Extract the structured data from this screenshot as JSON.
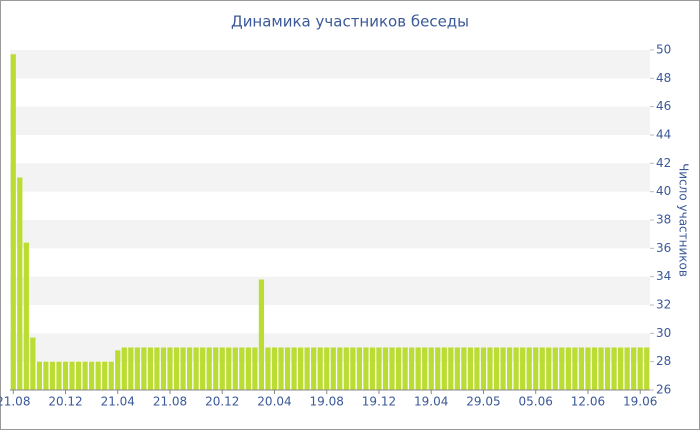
{
  "chart_data": {
    "type": "bar",
    "title": "Динамика участников беседы",
    "y_label": "Число участников",
    "categories": [
      "21.08",
      null,
      null,
      null,
      null,
      null,
      null,
      null,
      "20.12",
      null,
      null,
      null,
      null,
      null,
      null,
      null,
      "21.04",
      null,
      null,
      null,
      null,
      null,
      null,
      null,
      "21.08",
      null,
      null,
      null,
      null,
      null,
      null,
      null,
      "20.12",
      null,
      null,
      null,
      null,
      null,
      null,
      null,
      "20.04",
      null,
      null,
      null,
      null,
      null,
      null,
      null,
      "19.08",
      null,
      null,
      null,
      null,
      null,
      null,
      null,
      "19.12",
      null,
      null,
      null,
      null,
      null,
      null,
      null,
      "19.04",
      null,
      null,
      null,
      null,
      null,
      null,
      null,
      "29.05",
      null,
      null,
      null,
      null,
      null,
      null,
      null,
      "05.06",
      null,
      null,
      null,
      null,
      null,
      null,
      null,
      "12.06",
      null,
      null,
      null,
      null,
      null,
      null,
      null,
      "19.06",
      null
    ],
    "values": [
      49.7,
      41,
      36.4,
      29.7,
      28,
      28,
      28,
      28,
      28,
      28,
      28,
      28,
      28,
      28,
      28,
      28,
      28.8,
      29,
      29,
      29,
      29,
      29,
      29,
      29,
      29,
      29,
      29,
      29,
      29,
      29,
      29,
      29,
      29,
      29,
      29,
      29,
      29,
      29,
      33.8,
      29,
      29,
      29,
      29,
      29,
      29,
      29,
      29,
      29,
      29,
      29,
      29,
      29,
      29,
      29,
      29,
      29,
      29,
      29,
      29,
      29,
      29,
      29,
      29,
      29,
      29,
      29,
      29,
      29,
      29,
      29,
      29,
      29,
      29,
      29,
      29,
      29,
      29,
      29,
      29,
      29,
      29,
      29,
      29,
      29,
      29,
      29,
      29,
      29,
      29,
      29,
      29,
      29,
      29,
      29,
      29,
      29,
      29,
      29
    ],
    "color": "#bbdd33",
    "ylim": [
      26,
      50
    ],
    "yticks": [
      26,
      28,
      30,
      32,
      34,
      36,
      38,
      40,
      42,
      44,
      46,
      48,
      50
    ],
    "grid": true
  }
}
